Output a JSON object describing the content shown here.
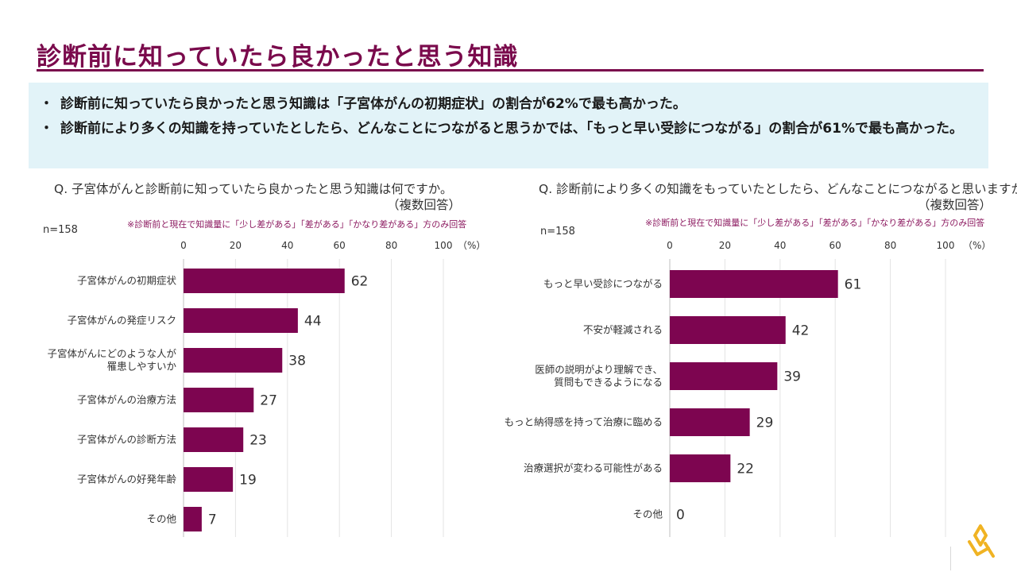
{
  "page": {
    "title": "診断前に知っていたら良かったと思う知識",
    "summary": [
      {
        "bullet": "・",
        "text": "診断前に知っていたら良かったと思う知識は「子宮体がんの初期症状」の割合が62%で最も高かった。"
      },
      {
        "bullet": "・",
        "text": "診断前により多くの知識を持っていたとしたら、どんなことにつながると思うかでは、「もっと早い受診につながる」の割合が61%で最も高かった。"
      }
    ]
  },
  "colors": {
    "accent": "#7a0a4c",
    "summary_bg": "#e2f3f8",
    "bar": "#7d0550",
    "note": "#8c1a60",
    "logo": "#f0b323"
  },
  "chart_data": [
    {
      "type": "bar",
      "orientation": "horizontal",
      "title": "Q. 子宮体がんと診断前に知っていたら良かったと思う知識は何ですか。",
      "subtitle": "（複数回答）",
      "note": "※診断前と現在で知識量に「少し差がある」「差がある」「かなり差がある」方のみ回答",
      "n_label": "n=158",
      "unit_label": "（%）",
      "xlim": [
        0,
        100
      ],
      "ticks": [
        "0",
        "20",
        "40",
        "60",
        "80",
        "100"
      ],
      "categories": [
        "子宮体がんの初期症状",
        "子宮体がんの発症リスク",
        "子宮体がんにどのような人が\n罹患しやすいか",
        "子宮体がんの治療方法",
        "子宮体がんの診断方法",
        "子宮体がんの好発年齢",
        "その他"
      ],
      "values": [
        62,
        44,
        38,
        27,
        23,
        19,
        7
      ]
    },
    {
      "type": "bar",
      "orientation": "horizontal",
      "title": "Q. 診断前により多くの知識をもっていたとしたら、どんなことにつながると思いますか。",
      "subtitle": "（複数回答）",
      "note": "※診断前と現在で知識量に「少し差がある」「差がある」「かなり差がある」方のみ回答",
      "n_label": "n=158",
      "unit_label": "（%）",
      "xlim": [
        0,
        100
      ],
      "ticks": [
        "0",
        "20",
        "40",
        "60",
        "80",
        "100"
      ],
      "categories": [
        "もっと早い受診につながる",
        "不安が軽減される",
        "医師の説明がより理解でき、\n質問もできるようになる",
        "もっと納得感を持って治療に臨める",
        "治療選択が変わる可能性がある",
        "その他"
      ],
      "values": [
        61,
        42,
        39,
        29,
        22,
        0
      ]
    }
  ]
}
